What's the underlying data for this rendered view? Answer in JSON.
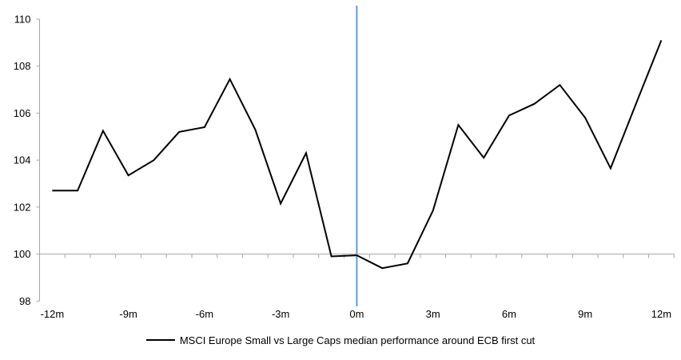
{
  "legend": {
    "label": "MSCI Europe Small vs Large Caps median performance around ECB first cut"
  },
  "chart_data": {
    "type": "line",
    "title": "",
    "xlabel": "",
    "ylabel": "",
    "x_months": [
      -12,
      -11,
      -10,
      -9,
      -8,
      -7,
      -6,
      -5,
      -4,
      -3,
      -2,
      -1,
      0,
      1,
      2,
      3,
      4,
      5,
      6,
      7,
      8,
      9,
      10,
      11,
      12
    ],
    "x_tick_months": [
      -12,
      -9,
      -6,
      -3,
      0,
      3,
      6,
      9,
      12
    ],
    "x_tick_labels": [
      "-12m",
      "-9m",
      "-6m",
      "-3m",
      "0m",
      "3m",
      "6m",
      "9m",
      "12m"
    ],
    "y_ticks": [
      98,
      100,
      102,
      104,
      106,
      108,
      110
    ],
    "ylim": [
      98,
      110
    ],
    "axis_crosses_at": 100,
    "grid": false,
    "legend_position": "bottom-center",
    "series": [
      {
        "name": "MSCI Europe Small vs Large Caps median performance around ECB first cut",
        "color": "#000000",
        "values": [
          102.7,
          102.7,
          105.25,
          103.35,
          104.0,
          105.2,
          105.4,
          107.45,
          105.3,
          102.15,
          104.3,
          99.9,
          99.95,
          99.4,
          99.6,
          101.85,
          105.5,
          104.1,
          105.9,
          106.4,
          107.2,
          105.8,
          103.65,
          106.4,
          109.1
        ]
      }
    ],
    "event_line": {
      "x_month": 0,
      "color": "#5B9BD5"
    },
    "colors": {
      "axis": "#A6A6A6",
      "series": "#000000",
      "event_line": "#5B9BD5",
      "text": "#000000"
    }
  }
}
